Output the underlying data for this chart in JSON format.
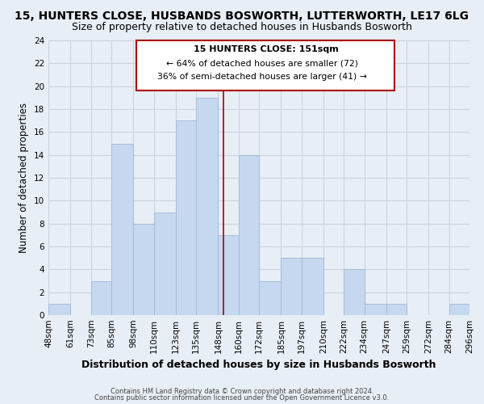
{
  "title": "15, HUNTERS CLOSE, HUSBANDS BOSWORTH, LUTTERWORTH, LE17 6LG",
  "subtitle": "Size of property relative to detached houses in Husbands Bosworth",
  "xlabel": "Distribution of detached houses by size in Husbands Bosworth",
  "ylabel": "Number of detached properties",
  "bar_edges": [
    48,
    61,
    73,
    85,
    98,
    110,
    123,
    135,
    148,
    160,
    172,
    185,
    197,
    210,
    222,
    234,
    247,
    259,
    272,
    284,
    296
  ],
  "bar_heights": [
    1,
    0,
    3,
    15,
    8,
    9,
    17,
    19,
    7,
    14,
    3,
    5,
    5,
    0,
    4,
    1,
    1,
    0,
    0,
    1
  ],
  "tick_labels": [
    "48sqm",
    "61sqm",
    "73sqm",
    "85sqm",
    "98sqm",
    "110sqm",
    "123sqm",
    "135sqm",
    "148sqm",
    "160sqm",
    "172sqm",
    "185sqm",
    "197sqm",
    "210sqm",
    "222sqm",
    "234sqm",
    "247sqm",
    "259sqm",
    "272sqm",
    "284sqm",
    "296sqm"
  ],
  "bar_color": "#c5d8ef",
  "bar_edge_color": "#a0b8d8",
  "vline_x": 151,
  "vline_color": "#aa0000",
  "ylim": [
    0,
    24
  ],
  "yticks": [
    0,
    2,
    4,
    6,
    8,
    10,
    12,
    14,
    16,
    18,
    20,
    22,
    24
  ],
  "annotation_title": "15 HUNTERS CLOSE: 151sqm",
  "annotation_line1": "← 64% of detached houses are smaller (72)",
  "annotation_line2": "36% of semi-detached houses are larger (41) →",
  "annotation_box_color": "#ffffff",
  "annotation_box_edge": "#aa0000",
  "title_fontsize": 10,
  "subtitle_fontsize": 9,
  "xlabel_fontsize": 9,
  "ylabel_fontsize": 8.5,
  "tick_fontsize": 7.5,
  "footer_line1": "Contains HM Land Registry data © Crown copyright and database right 2024.",
  "footer_line2": "Contains public sector information licensed under the Open Government Licence v3.0.",
  "background_color": "#e8eef5",
  "plot_bg_color": "#e8eef5",
  "grid_color": "#c8d4e0"
}
